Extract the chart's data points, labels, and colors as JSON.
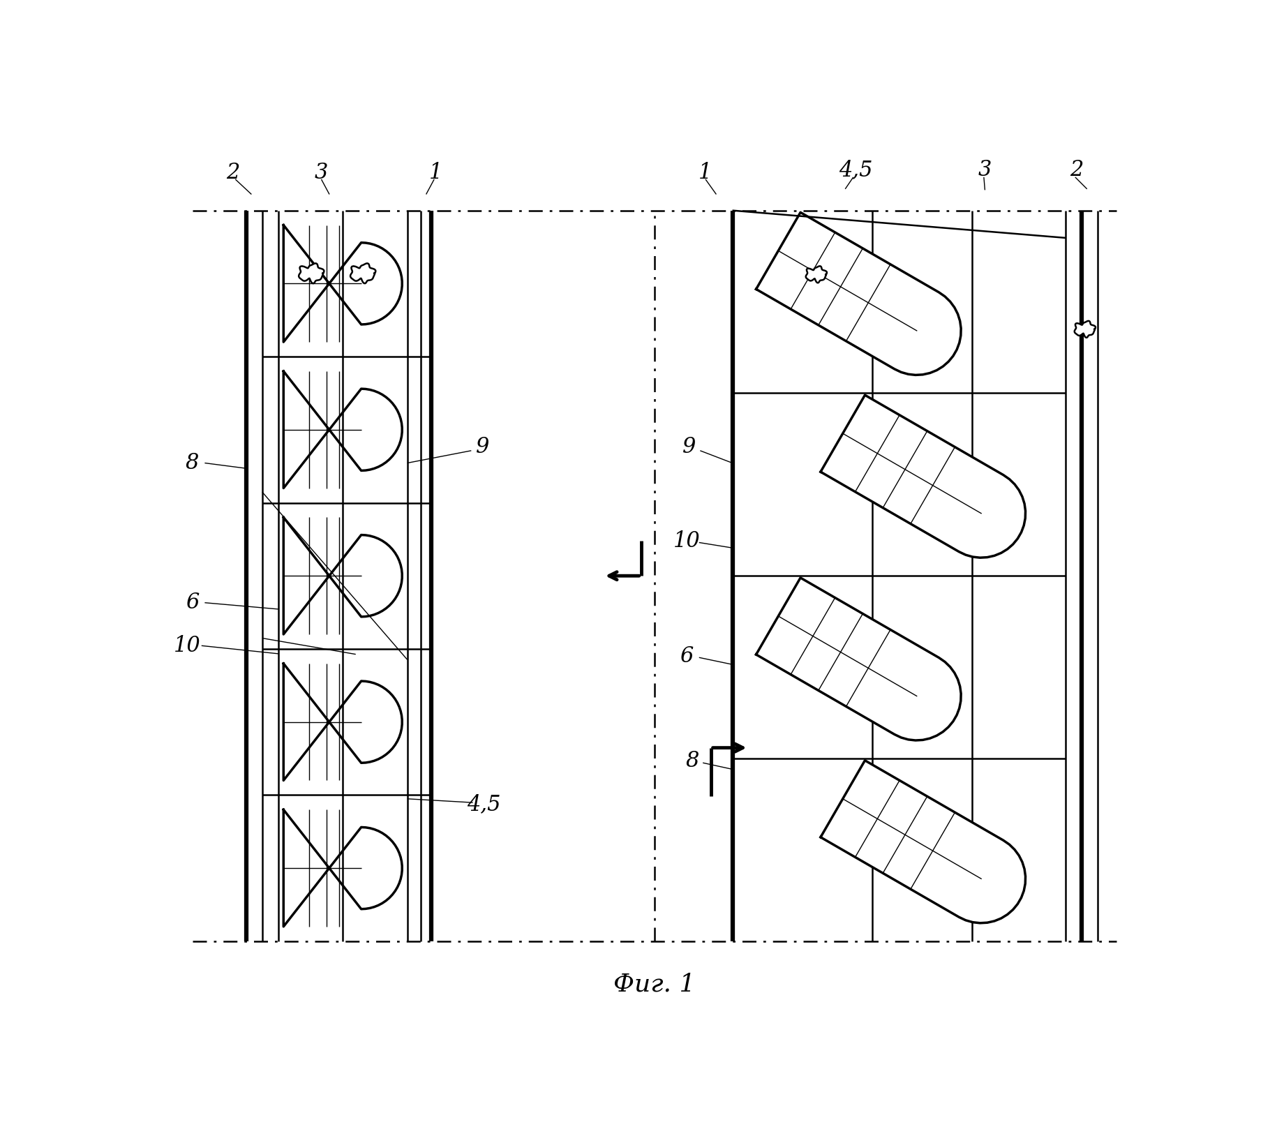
{
  "figure_title": "Фиг. 1",
  "bg_color": "#ffffff",
  "line_color": "#000000",
  "figsize": [
    18.3,
    16.28
  ],
  "dpi": 100
}
